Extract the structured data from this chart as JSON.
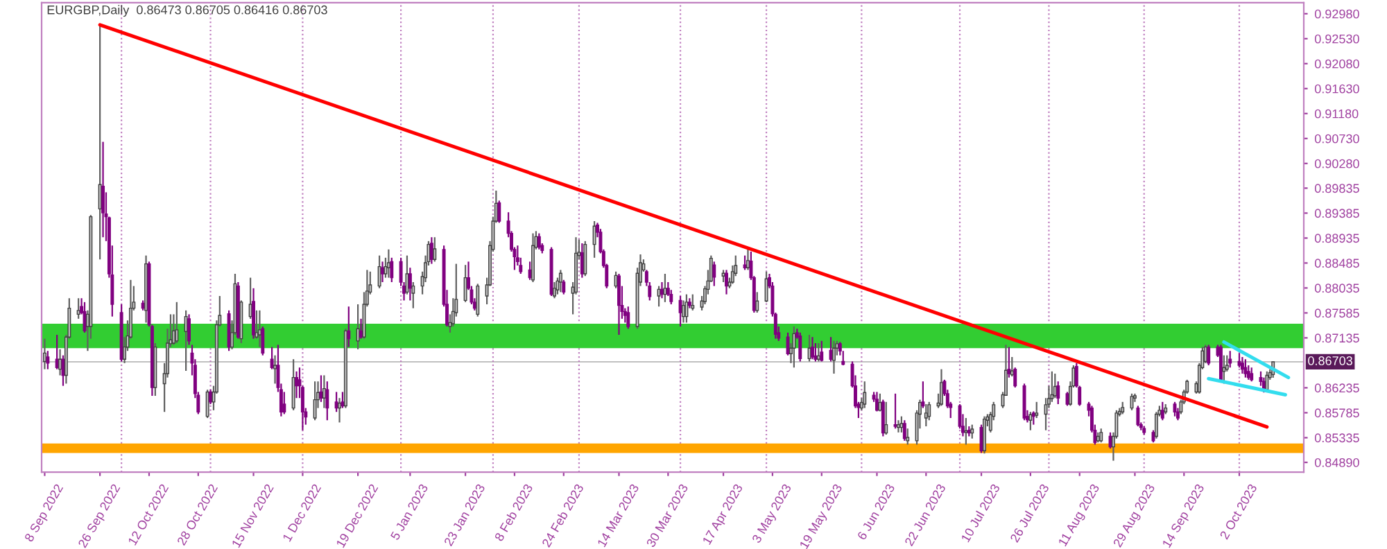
{
  "chart_data": {
    "type": "candlestick",
    "title": "EURGBP,Daily  0.86473 0.86705 0.86416 0.86703",
    "colors": [
      "#c0c0c0",
      "#800080",
      "#800080",
      "#c0c0c0",
      "#800080",
      "#c0c0c0",
      "#c0c0c0",
      "#c0c0c0",
      "#800080",
      "#800080",
      "#c0c0c0",
      "#c0c0c0",
      "#c0c0c0",
      "#800080",
      "#800080",
      "#800080",
      "#800080",
      "#800080",
      "#c0c0c0",
      "#c0c0c0",
      "#c0c0c0",
      "#c0c0c0",
      "#800080",
      "#c0c0c0",
      "#800080",
      "#800080",
      "#c0c0c0",
      "#c0c0c0",
      "#c0c0c0",
      "#c0c0c0",
      "#c0c0c0",
      "#c0c0c0",
      "#c0c0c0",
      "#800080",
      "#800080",
      "#800080",
      "#800080",
      "#c0c0c0",
      "#800080",
      "#c0c0c0",
      "#c0c0c0",
      "#c0c0c0",
      "#800080",
      "#c0c0c0",
      "#c0c0c0",
      "#800080",
      "#c0c0c0",
      "#c0c0c0",
      "#800080",
      "#c0c0c0",
      "#c0c0c0",
      "#800080",
      "#800080",
      "#c0c0c0",
      "#800080",
      "#800080",
      "#800080",
      "#c0c0c0",
      "#800080",
      "#800080",
      "#800080",
      "#800080",
      "#c0c0c0",
      "#c0c0c0",
      "#800080",
      "#c0c0c0",
      "#800080",
      "#800080",
      "#c0c0c0",
      "#800080",
      "#c0c0c0",
      "#800080",
      "#c0c0c0",
      "#800080",
      "#c0c0c0",
      "#c0c0c0",
      "#c0c0c0",
      "#c0c0c0",
      "#800080",
      "#c0c0c0",
      "#c0c0c0",
      "#800080",
      "#800080",
      "#800080",
      "#c0c0c0",
      "#800080",
      "#c0c0c0",
      "#c0c0c0",
      "#c0c0c0",
      "#c0c0c0",
      "#800080",
      "#c0c0c0",
      "#800080",
      "#800080",
      "#c0c0c0",
      "#c0c0c0",
      "#c0c0c0",
      "#c0c0c0",
      "#800080",
      "#800080",
      "#800080",
      "#c0c0c0",
      "#c0c0c0",
      "#c0c0c0",
      "#c0c0c0",
      "#c0c0c0",
      "#800080",
      "#800080",
      "#800080",
      "#800080",
      "#800080",
      "#800080",
      "#800080",
      "#c0c0c0",
      "#c0c0c0",
      "#800080",
      "#800080",
      "#800080",
      "#c0c0c0",
      "#c0c0c0",
      "#c0c0c0",
      "#800080",
      "#c0c0c0",
      "#c0c0c0",
      "#c0c0c0",
      "#800080",
      "#c0c0c0",
      "#c0c0c0",
      "#800080",
      "#800080",
      "#800080",
      "#800080",
      "#c0c0c0",
      "#800080",
      "#800080",
      "#800080",
      "#800080",
      "#c0c0c0",
      "#c0c0c0",
      "#c0c0c0",
      "#800080",
      "#800080",
      "#c0c0c0",
      "#800080",
      "#c0c0c0",
      "#800080",
      "#800080",
      "#800080",
      "#c0c0c0",
      "#c0c0c0",
      "#800080",
      "#c0c0c0",
      "#c0c0c0",
      "#c0c0c0",
      "#c0c0c0",
      "#c0c0c0",
      "#800080",
      "#c0c0c0",
      "#800080",
      "#c0c0c0",
      "#c0c0c0",
      "#c0c0c0",
      "#800080",
      "#c0c0c0",
      "#800080",
      "#800080",
      "#c0c0c0",
      "#c0c0c0",
      "#800080",
      "#800080",
      "#800080",
      "#800080",
      "#800080",
      "#c0c0c0",
      "#c0c0c0",
      "#800080",
      "#800080",
      "#c0c0c0",
      "#800080",
      "#800080",
      "#c0c0c0",
      "#800080",
      "#800080",
      "#c0c0c0",
      "#c0c0c0",
      "#800080",
      "#800080",
      "#800080",
      "#800080",
      "#800080",
      "#c0c0c0",
      "#c0c0c0",
      "#800080",
      "#800080",
      "#c0c0c0",
      "#800080",
      "#c0c0c0",
      "#800080",
      "#c0c0c0",
      "#c0c0c0",
      "#800080",
      "#c0c0c0",
      "#c0c0c0",
      "#c0c0c0",
      "#800080",
      "#c0c0c0",
      "#c0c0c0",
      "#c0c0c0",
      "#c0c0c0",
      "#800080",
      "#800080",
      "#800080",
      "#800080",
      "#800080",
      "#c0c0c0",
      "#800080",
      "#c0c0c0",
      "#800080",
      "#c0c0c0",
      "#c0c0c0",
      "#c0c0c0",
      "#c0c0c0",
      "#c0c0c0",
      "#c0c0c0",
      "#800080",
      "#c0c0c0",
      "#800080",
      "#800080",
      "#800080",
      "#c0c0c0",
      "#800080",
      "#c0c0c0",
      "#c0c0c0",
      "#c0c0c0",
      "#c0c0c0",
      "#c0c0c0",
      "#800080",
      "#800080",
      "#c0c0c0",
      "#c0c0c0",
      "#800080",
      "#800080",
      "#800080",
      "#800080",
      "#800080",
      "#c0c0c0",
      "#c0c0c0",
      "#800080",
      "#c0c0c0",
      "#c0c0c0",
      "#c0c0c0",
      "#c0c0c0",
      "#c0c0c0",
      "#c0c0c0",
      "#800080",
      "#800080",
      "#800080",
      "#800080",
      "#c0c0c0",
      "#c0c0c0",
      "#800080",
      "#c0c0c0",
      "#800080",
      "#800080",
      "#c0c0c0",
      "#c0c0c0",
      "#c0c0c0",
      "#c0c0c0",
      "#c0c0c0",
      "#c0c0c0",
      "#c0c0c0",
      "#800080",
      "#800080",
      "#800080",
      "#c0c0c0",
      "#c0c0c0",
      "#800080",
      "#800080",
      "#800080",
      "#800080",
      "#800080",
      "#800080",
      "#800080",
      "#800080",
      "#c0c0c0",
      "#c0c0c0",
      "#c0c0c0"
    ],
    "x": [
      "2022-09-08",
      "2022-09-09",
      "2022-09-12",
      "2022-09-13",
      "2022-09-14",
      "2022-09-15",
      "2022-09-16",
      "2022-09-19",
      "2022-09-20",
      "2022-09-21",
      "2022-09-22",
      "2022-09-23",
      "2022-09-26",
      "2022-09-27",
      "2022-09-28",
      "2022-09-29",
      "2022-09-30",
      "2022-10-03",
      "2022-10-04",
      "2022-10-05",
      "2022-10-06",
      "2022-10-07",
      "2022-10-10",
      "2022-10-11",
      "2022-10-12",
      "2022-10-13",
      "2022-10-14",
      "2022-10-17",
      "2022-10-18",
      "2022-10-19",
      "2022-10-20",
      "2022-10-21",
      "2022-10-24",
      "2022-10-25",
      "2022-10-26",
      "2022-10-27",
      "2022-10-28",
      "2022-10-31",
      "2022-11-01",
      "2022-11-02",
      "2022-11-03",
      "2022-11-04",
      "2022-11-07",
      "2022-11-08",
      "2022-11-09",
      "2022-11-10",
      "2022-11-11",
      "2022-11-14",
      "2022-11-15",
      "2022-11-16",
      "2022-11-17",
      "2022-11-18",
      "2022-11-21",
      "2022-11-22",
      "2022-11-23",
      "2022-11-24",
      "2022-11-25",
      "2022-11-28",
      "2022-11-29",
      "2022-11-30",
      "2022-12-01",
      "2022-12-02",
      "2022-12-05",
      "2022-12-06",
      "2022-12-07",
      "2022-12-08",
      "2022-12-09",
      "2022-12-12",
      "2022-12-13",
      "2022-12-14",
      "2022-12-15",
      "2022-12-16",
      "2022-12-19",
      "2022-12-20",
      "2022-12-21",
      "2022-12-22",
      "2022-12-23",
      "2022-12-26",
      "2022-12-27",
      "2022-12-28",
      "2022-12-29",
      "2022-12-30",
      "2023-01-02",
      "2023-01-03",
      "2023-01-04",
      "2023-01-05",
      "2023-01-06",
      "2023-01-09",
      "2023-01-10",
      "2023-01-11",
      "2023-01-12",
      "2023-01-13",
      "2023-01-16",
      "2023-01-17",
      "2023-01-18",
      "2023-01-19",
      "2023-01-20",
      "2023-01-23",
      "2023-01-24",
      "2023-01-25",
      "2023-01-26",
      "2023-01-27",
      "2023-01-30",
      "2023-01-31",
      "2023-02-01",
      "2023-02-02",
      "2023-02-03",
      "2023-02-06",
      "2023-02-07",
      "2023-02-08",
      "2023-02-09",
      "2023-02-10",
      "2023-02-13",
      "2023-02-14",
      "2023-02-15",
      "2023-02-16",
      "2023-02-17",
      "2023-02-20",
      "2023-02-21",
      "2023-02-22",
      "2023-02-23",
      "2023-02-24",
      "2023-02-27",
      "2023-02-28",
      "2023-03-01",
      "2023-03-02",
      "2023-03-03",
      "2023-03-06",
      "2023-03-07",
      "2023-03-08",
      "2023-03-09",
      "2023-03-10",
      "2023-03-13",
      "2023-03-14",
      "2023-03-15",
      "2023-03-16",
      "2023-03-17",
      "2023-03-20",
      "2023-03-21",
      "2023-03-22",
      "2023-03-23",
      "2023-03-24",
      "2023-03-27",
      "2023-03-28",
      "2023-03-29",
      "2023-03-30",
      "2023-03-31",
      "2023-04-03",
      "2023-04-04",
      "2023-04-05",
      "2023-04-06",
      "2023-04-07",
      "2023-04-10",
      "2023-04-11",
      "2023-04-12",
      "2023-04-13",
      "2023-04-14",
      "2023-04-17",
      "2023-04-18",
      "2023-04-19",
      "2023-04-20",
      "2023-04-21",
      "2023-04-24",
      "2023-04-25",
      "2023-04-26",
      "2023-04-27",
      "2023-04-28",
      "2023-05-01",
      "2023-05-02",
      "2023-05-03",
      "2023-05-04",
      "2023-05-05",
      "2023-05-08",
      "2023-05-09",
      "2023-05-10",
      "2023-05-11",
      "2023-05-12",
      "2023-05-15",
      "2023-05-16",
      "2023-05-17",
      "2023-05-18",
      "2023-05-19",
      "2023-05-22",
      "2023-05-23",
      "2023-05-24",
      "2023-05-25",
      "2023-05-26",
      "2023-05-29",
      "2023-05-30",
      "2023-05-31",
      "2023-06-01",
      "2023-06-02",
      "2023-06-05",
      "2023-06-06",
      "2023-06-07",
      "2023-06-08",
      "2023-06-09",
      "2023-06-12",
      "2023-06-13",
      "2023-06-14",
      "2023-06-15",
      "2023-06-16",
      "2023-06-19",
      "2023-06-20",
      "2023-06-21",
      "2023-06-22",
      "2023-06-23",
      "2023-06-26",
      "2023-06-27",
      "2023-06-28",
      "2023-06-29",
      "2023-06-30",
      "2023-07-03",
      "2023-07-04",
      "2023-07-05",
      "2023-07-06",
      "2023-07-07",
      "2023-07-10",
      "2023-07-11",
      "2023-07-12",
      "2023-07-13",
      "2023-07-14",
      "2023-07-17",
      "2023-07-18",
      "2023-07-19",
      "2023-07-20",
      "2023-07-21",
      "2023-07-24",
      "2023-07-25",
      "2023-07-26",
      "2023-07-27",
      "2023-07-28",
      "2023-07-31",
      "2023-08-01",
      "2023-08-02",
      "2023-08-03",
      "2023-08-04",
      "2023-08-07",
      "2023-08-08",
      "2023-08-09",
      "2023-08-10",
      "2023-08-11",
      "2023-08-14",
      "2023-08-15",
      "2023-08-16",
      "2023-08-17",
      "2023-08-18",
      "2023-08-21",
      "2023-08-22",
      "2023-08-23",
      "2023-08-24",
      "2023-08-25",
      "2023-08-28",
      "2023-08-29",
      "2023-08-30",
      "2023-08-31",
      "2023-09-01",
      "2023-09-04",
      "2023-09-05",
      "2023-09-06",
      "2023-09-07",
      "2023-09-08",
      "2023-09-11",
      "2023-09-12",
      "2023-09-13",
      "2023-09-14",
      "2023-09-15",
      "2023-09-18",
      "2023-09-19",
      "2023-09-20",
      "2023-09-21",
      "2023-09-22",
      "2023-09-25",
      "2023-09-26",
      "2023-09-27",
      "2023-09-28",
      "2023-09-29",
      "2023-10-02",
      "2023-10-03",
      "2023-10-04",
      "2023-10-05",
      "2023-10-06",
      "2023-10-09",
      "2023-10-10",
      "2023-10-11",
      "2023-10-12",
      "2023-10-13"
    ],
    "ohlc": [
      [
        0.8671,
        0.8712,
        0.8657,
        0.8686
      ],
      [
        0.8679,
        0.869,
        0.8657,
        0.8668
      ],
      [
        0.8675,
        0.8719,
        0.8657,
        0.866
      ],
      [
        0.8657,
        0.8693,
        0.8646,
        0.8675
      ],
      [
        0.8675,
        0.8682,
        0.8627,
        0.8646
      ],
      [
        0.8646,
        0.8719,
        0.8631,
        0.8715
      ],
      [
        0.8715,
        0.8785,
        0.8712,
        0.8767
      ],
      [
        0.8756,
        0.8785,
        0.8748,
        0.8763
      ],
      [
        0.877,
        0.8785,
        0.8756,
        0.8759
      ],
      [
        0.8761,
        0.8778,
        0.8723,
        0.8726
      ],
      [
        0.8734,
        0.8763,
        0.869,
        0.8756
      ],
      [
        0.8734,
        0.8935,
        0.8712,
        0.8932
      ],
      [
        0.8946,
        0.9276,
        0.8855,
        0.899
      ],
      [
        0.8987,
        0.9067,
        0.8895,
        0.8939
      ],
      [
        0.8937,
        0.8976,
        0.8888,
        0.8932
      ],
      [
        0.893,
        0.8932,
        0.8822,
        0.8829
      ],
      [
        0.8827,
        0.888,
        0.8752,
        0.8774
      ],
      [
        0.8759,
        0.8774,
        0.8671,
        0.8675
      ],
      [
        0.8675,
        0.8715,
        0.8668,
        0.8697
      ],
      [
        0.8697,
        0.8745,
        0.869,
        0.8717
      ],
      [
        0.8715,
        0.8818,
        0.8712,
        0.8767
      ],
      [
        0.8767,
        0.8807,
        0.8763,
        0.8778
      ],
      [
        0.8776,
        0.8781,
        0.8763,
        0.8767
      ],
      [
        0.8763,
        0.8862,
        0.8741,
        0.8847
      ],
      [
        0.8847,
        0.8851,
        0.8734,
        0.8737
      ],
      [
        0.8734,
        0.8737,
        0.8609,
        0.8624
      ],
      [
        0.8624,
        0.8704,
        0.8609,
        0.8697
      ],
      [
        0.8631,
        0.8668,
        0.858,
        0.8649
      ],
      [
        0.8649,
        0.873,
        0.8642,
        0.8704
      ],
      [
        0.8703,
        0.8756,
        0.8697,
        0.871
      ],
      [
        0.8704,
        0.8756,
        0.8701,
        0.8726
      ],
      [
        0.8708,
        0.8778,
        0.8704,
        0.8728
      ],
      [
        0.8725,
        0.8763,
        0.8654,
        0.8752
      ],
      [
        0.8748,
        0.8756,
        0.8701,
        0.8708
      ],
      [
        0.8686,
        0.8701,
        0.8646,
        0.8668
      ],
      [
        0.8664,
        0.8675,
        0.8605,
        0.8613
      ],
      [
        0.861,
        0.8616,
        0.8576,
        0.858
      ],
      [
        0.8572,
        0.862,
        0.8569,
        0.8616
      ],
      [
        0.8616,
        0.862,
        0.8594,
        0.8598
      ],
      [
        0.8598,
        0.8627,
        0.8583,
        0.8616
      ],
      [
        0.8616,
        0.8745,
        0.8613,
        0.8737
      ],
      [
        0.8737,
        0.8789,
        0.8734,
        0.8754
      ],
      [
        0.8757,
        0.8763,
        0.869,
        0.8697
      ],
      [
        0.8697,
        0.8745,
        0.8693,
        0.8723
      ],
      [
        0.8723,
        0.8829,
        0.8719,
        0.8811
      ],
      [
        0.8807,
        0.8814,
        0.8712,
        0.8715
      ],
      [
        0.8712,
        0.8781,
        0.8704,
        0.8778
      ],
      [
        0.8752,
        0.8822,
        0.8748,
        0.8774
      ],
      [
        0.8779,
        0.8803,
        0.8712,
        0.8719
      ],
      [
        0.8715,
        0.8763,
        0.8712,
        0.8723
      ],
      [
        0.8719,
        0.8763,
        0.8697,
        0.8728
      ],
      [
        0.873,
        0.8734,
        0.8682,
        0.8686
      ],
      [
        0.8675,
        0.8697,
        0.8657,
        0.866
      ],
      [
        0.8658,
        0.8682,
        0.8631,
        0.8664
      ],
      [
        0.8664,
        0.8701,
        0.8616,
        0.8624
      ],
      [
        0.862,
        0.8631,
        0.8572,
        0.858
      ],
      [
        0.8594,
        0.8616,
        0.8576,
        0.858
      ],
      [
        0.8587,
        0.8675,
        0.8583,
        0.8642
      ],
      [
        0.8642,
        0.8653,
        0.8605,
        0.8627
      ],
      [
        0.8638,
        0.866,
        0.8605,
        0.8627
      ],
      [
        0.8624,
        0.8627,
        0.8547,
        0.858
      ],
      [
        0.858,
        0.8587,
        0.8557,
        0.8571
      ],
      [
        0.8569,
        0.8635,
        0.8565,
        0.8602
      ],
      [
        0.8602,
        0.8635,
        0.8587,
        0.8615
      ],
      [
        0.8616,
        0.8646,
        0.8598,
        0.8605
      ],
      [
        0.8605,
        0.8646,
        0.8587,
        0.8622
      ],
      [
        0.862,
        0.8635,
        0.8565,
        0.8587
      ],
      [
        0.8598,
        0.8616,
        0.858,
        0.8587
      ],
      [
        0.8587,
        0.8605,
        0.8561,
        0.8596
      ],
      [
        0.8598,
        0.8616,
        0.8587,
        0.8591
      ],
      [
        0.8591,
        0.873,
        0.8587,
        0.8726
      ],
      [
        0.8726,
        0.877,
        0.8697,
        0.8712
      ],
      [
        0.8708,
        0.8774,
        0.8693,
        0.873
      ],
      [
        0.8726,
        0.8748,
        0.8712,
        0.8715
      ],
      [
        0.8715,
        0.8796,
        0.8712,
        0.8774
      ],
      [
        0.8774,
        0.8836,
        0.877,
        0.8798
      ],
      [
        0.8796,
        0.8833,
        0.8792,
        0.8809
      ],
      [
        0.8807,
        0.8862,
        0.8803,
        0.8842
      ],
      [
        0.884,
        0.8851,
        0.8814,
        0.8829
      ],
      [
        0.8829,
        0.8858,
        0.8822,
        0.8842
      ],
      [
        0.884,
        0.8873,
        0.8822,
        0.8849
      ],
      [
        0.8851,
        0.8858,
        0.8814,
        0.8822
      ],
      [
        0.8851,
        0.8858,
        0.8807,
        0.8814
      ],
      [
        0.8807,
        0.8814,
        0.8781,
        0.8794
      ],
      [
        0.8796,
        0.8862,
        0.8792,
        0.8829
      ],
      [
        0.8829,
        0.884,
        0.8781,
        0.8803
      ],
      [
        0.8794,
        0.8814,
        0.8767,
        0.8807
      ],
      [
        0.8807,
        0.8833,
        0.8792,
        0.8824
      ],
      [
        0.8822,
        0.8862,
        0.8814,
        0.8849
      ],
      [
        0.8851,
        0.8888,
        0.8844,
        0.8882
      ],
      [
        0.8884,
        0.8895,
        0.8847,
        0.8855
      ],
      [
        0.8855,
        0.8895,
        0.8851,
        0.8874
      ],
      [
        0.8873,
        0.888,
        0.877,
        0.8774
      ],
      [
        0.8774,
        0.88,
        0.8734,
        0.8737
      ],
      [
        0.8734,
        0.8756,
        0.8723,
        0.8741
      ],
      [
        0.8739,
        0.8785,
        0.8734,
        0.8761
      ],
      [
        0.8759,
        0.8847,
        0.8752,
        0.8783
      ],
      [
        0.8781,
        0.8845,
        0.8778,
        0.8822
      ],
      [
        0.8822,
        0.8851,
        0.88,
        0.8803
      ],
      [
        0.88,
        0.8807,
        0.8774,
        0.8778
      ],
      [
        0.8778,
        0.8785,
        0.8763,
        0.8767
      ],
      [
        0.8756,
        0.8811,
        0.8752,
        0.8807
      ],
      [
        0.8789,
        0.8822,
        0.8774,
        0.8809
      ],
      [
        0.8809,
        0.8888,
        0.8807,
        0.888
      ],
      [
        0.8873,
        0.8932,
        0.8869,
        0.8924
      ],
      [
        0.8924,
        0.8979,
        0.8921,
        0.8956
      ],
      [
        0.8957,
        0.8961,
        0.8921,
        0.8924
      ],
      [
        0.8924,
        0.894,
        0.8895,
        0.8902
      ],
      [
        0.8902,
        0.8906,
        0.8869,
        0.8873
      ],
      [
        0.8873,
        0.8877,
        0.8836,
        0.886
      ],
      [
        0.8858,
        0.888,
        0.8844,
        0.8851
      ],
      [
        0.8844,
        0.8858,
        0.8829,
        0.8833
      ],
      [
        0.8836,
        0.8851,
        0.8818,
        0.8822
      ],
      [
        0.8818,
        0.8902,
        0.8814,
        0.888
      ],
      [
        0.8877,
        0.8906,
        0.8873,
        0.8896
      ],
      [
        0.8896,
        0.8902,
        0.8873,
        0.8877
      ],
      [
        0.888,
        0.8884,
        0.8866,
        0.8871
      ],
      [
        0.8873,
        0.8877,
        0.8789,
        0.8792
      ],
      [
        0.8789,
        0.8814,
        0.8785,
        0.8803
      ],
      [
        0.88,
        0.8822,
        0.8792,
        0.8816
      ],
      [
        0.8814,
        0.8836,
        0.8796,
        0.883
      ],
      [
        0.8814,
        0.8818,
        0.8792,
        0.8796
      ],
      [
        0.8794,
        0.8814,
        0.8756,
        0.8805
      ],
      [
        0.8796,
        0.8895,
        0.8792,
        0.8866
      ],
      [
        0.8862,
        0.8891,
        0.8855,
        0.8868
      ],
      [
        0.8867,
        0.8884,
        0.8822,
        0.8829
      ],
      [
        0.8829,
        0.8888,
        0.8825,
        0.8882
      ],
      [
        0.8882,
        0.8924,
        0.8858,
        0.8915
      ],
      [
        0.8917,
        0.8921,
        0.8895,
        0.8904
      ],
      [
        0.8904,
        0.891,
        0.8866,
        0.8869
      ],
      [
        0.8869,
        0.8873,
        0.884,
        0.8844
      ],
      [
        0.8844,
        0.8847,
        0.8803,
        0.8807
      ],
      [
        0.8807,
        0.8833,
        0.8803,
        0.8826
      ],
      [
        0.8825,
        0.8829,
        0.8719,
        0.8772
      ],
      [
        0.8772,
        0.8807,
        0.8748,
        0.8761
      ],
      [
        0.8761,
        0.8767,
        0.8741,
        0.8754
      ],
      [
        0.8759,
        0.877,
        0.873,
        0.8734
      ],
      [
        0.8734,
        0.884,
        0.873,
        0.883
      ],
      [
        0.8814,
        0.8864,
        0.8807,
        0.8849
      ],
      [
        0.8836,
        0.8855,
        0.8833,
        0.8847
      ],
      [
        0.8833,
        0.8836,
        0.8807,
        0.8814
      ],
      [
        0.8807,
        0.8814,
        0.8781,
        0.8788
      ],
      [
        0.8789,
        0.8807,
        0.877,
        0.8801
      ],
      [
        0.8801,
        0.8814,
        0.8785,
        0.8792
      ],
      [
        0.8792,
        0.8829,
        0.8778,
        0.8803
      ],
      [
        0.8803,
        0.8814,
        0.8789,
        0.8792
      ],
      [
        0.8792,
        0.88,
        0.8774,
        0.8779
      ],
      [
        0.8781,
        0.8789,
        0.8734,
        0.8759
      ],
      [
        0.8752,
        0.8781,
        0.8741,
        0.8772
      ],
      [
        0.8752,
        0.8792,
        0.8741,
        0.8778
      ],
      [
        0.8778,
        0.8785,
        0.8767,
        0.8772
      ],
      [
        0.8767,
        0.8792,
        0.8763,
        0.8772
      ],
      [
        0.8769,
        0.8789,
        0.8763,
        0.878
      ],
      [
        0.8779,
        0.8807,
        0.8774,
        0.8802
      ],
      [
        0.8801,
        0.8836,
        0.8792,
        0.8816
      ],
      [
        0.8816,
        0.8862,
        0.8814,
        0.8857
      ],
      [
        0.8845,
        0.8851,
        0.8807,
        0.8823
      ],
      [
        0.8825,
        0.8836,
        0.8814,
        0.883
      ],
      [
        0.883,
        0.8836,
        0.8792,
        0.8807
      ],
      [
        0.8807,
        0.8822,
        0.8803,
        0.8814
      ],
      [
        0.8814,
        0.8844,
        0.8811,
        0.8833
      ],
      [
        0.883,
        0.8862,
        0.8825,
        0.8844
      ],
      [
        0.8845,
        0.8862,
        0.8836,
        0.884
      ],
      [
        0.884,
        0.8873,
        0.8836,
        0.8853
      ],
      [
        0.8852,
        0.8869,
        0.8818,
        0.8822
      ],
      [
        0.8822,
        0.8825,
        0.8759,
        0.8763
      ],
      [
        0.8763,
        0.8796,
        0.8759,
        0.878
      ],
      [
        0.878,
        0.8833,
        0.8778,
        0.882
      ],
      [
        0.8822,
        0.8829,
        0.8803,
        0.8807
      ],
      [
        0.8807,
        0.8814,
        0.8752,
        0.8757
      ],
      [
        0.8756,
        0.8759,
        0.8712,
        0.872
      ],
      [
        0.8723,
        0.8734,
        0.8708,
        0.8713
      ],
      [
        0.8715,
        0.8723,
        0.8682,
        0.8685
      ],
      [
        0.8685,
        0.8704,
        0.8668,
        0.8695
      ],
      [
        0.8695,
        0.8734,
        0.866,
        0.8721
      ],
      [
        0.8723,
        0.873,
        0.8712,
        0.8715
      ],
      [
        0.8717,
        0.8723,
        0.8671,
        0.8676
      ],
      [
        0.8676,
        0.8719,
        0.8671,
        0.8695
      ],
      [
        0.8697,
        0.8715,
        0.8675,
        0.8679
      ],
      [
        0.8681,
        0.8704,
        0.8671,
        0.8675
      ],
      [
        0.8675,
        0.8704,
        0.8671,
        0.8681
      ],
      [
        0.8688,
        0.8708,
        0.8671,
        0.8673
      ],
      [
        0.8691,
        0.8715,
        0.8671,
        0.8675
      ],
      [
        0.8673,
        0.8708,
        0.8649,
        0.8695
      ],
      [
        0.8695,
        0.8708,
        0.8682,
        0.8703
      ],
      [
        0.8703,
        0.8706,
        0.8682,
        0.869
      ],
      [
        0.8671,
        0.869,
        0.8664,
        0.8666
      ],
      [
        0.8666,
        0.8671,
        0.8624,
        0.8627
      ],
      [
        0.8627,
        0.8646,
        0.8587,
        0.8591
      ],
      [
        0.8594,
        0.8598,
        0.8569,
        0.8588
      ],
      [
        0.8587,
        0.8605,
        0.8583,
        0.8597
      ],
      [
        0.8594,
        0.8635,
        0.8587,
        0.8615
      ],
      [
        0.861,
        0.8616,
        0.8598,
        0.8603
      ],
      [
        0.8603,
        0.8616,
        0.8581,
        0.8583
      ],
      [
        0.8583,
        0.8613,
        0.8581,
        0.8597
      ],
      [
        0.8598,
        0.8602,
        0.8536,
        0.8542
      ],
      [
        0.8542,
        0.8598,
        0.8539,
        0.8557
      ],
      [
        0.8557,
        0.8613,
        0.855,
        0.8554
      ],
      [
        0.8552,
        0.8565,
        0.8543,
        0.8557
      ],
      [
        0.8552,
        0.8572,
        0.8543,
        0.8559
      ],
      [
        0.8559,
        0.8565,
        0.8528,
        0.8532
      ],
      [
        0.8528,
        0.855,
        0.8521,
        0.8534
      ],
      [
        0.8528,
        0.8583,
        0.8521,
        0.8578
      ],
      [
        0.8576,
        0.8602,
        0.855,
        0.8597
      ],
      [
        0.8598,
        0.8635,
        0.8587,
        0.8591
      ],
      [
        0.8569,
        0.8594,
        0.8554,
        0.8578
      ],
      [
        0.8572,
        0.8598,
        0.8565,
        0.8593
      ],
      [
        0.8591,
        0.8613,
        0.8587,
        0.8596
      ],
      [
        0.8594,
        0.8657,
        0.8591,
        0.8633
      ],
      [
        0.8635,
        0.8638,
        0.8609,
        0.8613
      ],
      [
        0.8613,
        0.862,
        0.8587,
        0.8591
      ],
      [
        0.8594,
        0.8598,
        0.8569,
        0.8588
      ],
      [
        0.8591,
        0.8594,
        0.855,
        0.8554
      ],
      [
        0.8554,
        0.8576,
        0.8536,
        0.8543
      ],
      [
        0.8543,
        0.8569,
        0.8521,
        0.8546
      ],
      [
        0.8547,
        0.8554,
        0.8536,
        0.8542
      ],
      [
        0.8542,
        0.8557,
        0.8532,
        0.8549
      ],
      [
        0.8552,
        0.8557,
        0.8506,
        0.851
      ],
      [
        0.851,
        0.8572,
        0.8505,
        0.8567
      ],
      [
        0.8565,
        0.8576,
        0.8554,
        0.8571
      ],
      [
        0.8547,
        0.858,
        0.8543,
        0.8575
      ],
      [
        0.8572,
        0.8598,
        0.8565,
        0.8593
      ],
      [
        0.8591,
        0.8616,
        0.8587,
        0.8611
      ],
      [
        0.861,
        0.8701,
        0.8609,
        0.8655
      ],
      [
        0.8657,
        0.8697,
        0.8642,
        0.8649
      ],
      [
        0.8647,
        0.8679,
        0.8644,
        0.8654
      ],
      [
        0.8657,
        0.866,
        0.8624,
        0.8627
      ],
      [
        0.8627,
        0.8631,
        0.8565,
        0.8569
      ],
      [
        0.8572,
        0.8583,
        0.8561,
        0.8566
      ],
      [
        0.8565,
        0.858,
        0.8547,
        0.8575
      ],
      [
        0.8578,
        0.8581,
        0.8557,
        0.8572
      ],
      [
        0.8574,
        0.8598,
        0.8569,
        0.8578
      ],
      [
        0.8576,
        0.8605,
        0.8547,
        0.8593
      ],
      [
        0.8594,
        0.8627,
        0.8587,
        0.8604
      ],
      [
        0.8604,
        0.8653,
        0.8598,
        0.8611
      ],
      [
        0.8609,
        0.8649,
        0.8605,
        0.8626
      ],
      [
        0.8627,
        0.8635,
        0.8594,
        0.8605
      ],
      [
        0.8613,
        0.8616,
        0.8591,
        0.8594
      ],
      [
        0.8594,
        0.8635,
        0.8591,
        0.8626
      ],
      [
        0.8627,
        0.8664,
        0.8624,
        0.8659
      ],
      [
        0.8662,
        0.8668,
        0.8624,
        0.8627
      ],
      [
        0.8624,
        0.8627,
        0.8591,
        0.8594
      ],
      [
        0.8594,
        0.8598,
        0.8572,
        0.8583
      ],
      [
        0.8587,
        0.8591,
        0.8543,
        0.8547
      ],
      [
        0.8547,
        0.8557,
        0.8521,
        0.8525
      ],
      [
        0.8528,
        0.8543,
        0.8525,
        0.8536
      ],
      [
        0.8528,
        0.855,
        0.8525,
        0.8543
      ],
      [
        0.8536,
        0.8543,
        0.8514,
        0.8517
      ],
      [
        0.8517,
        0.8543,
        0.8492,
        0.8536
      ],
      [
        0.8536,
        0.8583,
        0.8532,
        0.8578
      ],
      [
        0.8576,
        0.8587,
        0.8572,
        0.8581
      ],
      [
        0.858,
        0.8598,
        0.8576,
        0.8588
      ],
      [
        0.8587,
        0.8613,
        0.8583,
        0.8608
      ],
      [
        0.8605,
        0.8613,
        0.8598,
        0.8609
      ],
      [
        0.8587,
        0.8591,
        0.8554,
        0.8557
      ],
      [
        0.8557,
        0.8561,
        0.8547,
        0.8552
      ],
      [
        0.855,
        0.8554,
        0.8539,
        0.8543
      ],
      [
        0.8543,
        0.8547,
        0.8525,
        0.8528
      ],
      [
        0.8536,
        0.858,
        0.8532,
        0.8576
      ],
      [
        0.8576,
        0.8591,
        0.8572,
        0.8583
      ],
      [
        0.8583,
        0.8598,
        0.8565,
        0.8569
      ],
      [
        0.858,
        0.8594,
        0.8576,
        0.8587
      ],
      [
        0.8594,
        0.8598,
        0.8572,
        0.858
      ],
      [
        0.858,
        0.8587,
        0.8565,
        0.8569
      ],
      [
        0.858,
        0.8602,
        0.8576,
        0.8598
      ],
      [
        0.8598,
        0.862,
        0.8594,
        0.8616
      ],
      [
        0.8616,
        0.8638,
        0.8613,
        0.8635
      ],
      [
        0.8616,
        0.8635,
        0.8613,
        0.8631
      ],
      [
        0.8616,
        0.8668,
        0.8613,
        0.8664
      ],
      [
        0.866,
        0.8697,
        0.8657,
        0.869
      ],
      [
        0.8671,
        0.8701,
        0.8668,
        0.8697
      ],
      [
        0.8697,
        0.8701,
        0.8664,
        0.8668
      ],
      [
        0.8697,
        0.8701,
        0.8679,
        0.8682
      ],
      [
        0.8697,
        0.8701,
        0.8635,
        0.8638
      ],
      [
        0.8653,
        0.8682,
        0.8631,
        0.866
      ],
      [
        0.8657,
        0.8682,
        0.8653,
        0.8664
      ],
      [
        0.8675,
        0.869,
        0.866,
        0.8668
      ],
      [
        0.8671,
        0.8686,
        0.866,
        0.8664
      ],
      [
        0.8668,
        0.8679,
        0.8649,
        0.8657
      ],
      [
        0.866,
        0.8675,
        0.8642,
        0.8649
      ],
      [
        0.8653,
        0.8664,
        0.8638,
        0.8642
      ],
      [
        0.8649,
        0.866,
        0.8635,
        0.8638
      ],
      [
        0.8642,
        0.8653,
        0.8627,
        0.8635
      ],
      [
        0.8635,
        0.8642,
        0.8615,
        0.862
      ],
      [
        0.862,
        0.8653,
        0.8616,
        0.8646
      ],
      [
        0.8642,
        0.8657,
        0.8638,
        0.8651
      ],
      [
        0.86473,
        0.86705,
        0.86416,
        0.86703
      ]
    ],
    "series": [
      {
        "type": "line",
        "color": "#ff0000",
        "x": [
          "2022-09-26",
          "2023-10-11"
        ],
        "values": [
          0.9278,
          0.8553
        ]
      },
      {
        "type": "line",
        "color": "#33ddee",
        "x": [
          "2023-09-27",
          "2023-10-18"
        ],
        "values": [
          0.8706,
          0.8642
        ]
      },
      {
        "type": "line",
        "color": "#33ddee",
        "x": [
          "2023-09-22",
          "2023-10-17"
        ],
        "values": [
          0.864,
          0.8611
        ]
      }
    ],
    "bands": [
      {
        "axis": "y",
        "from": 0.8695,
        "to": 0.8739,
        "color": "#32cd32"
      },
      {
        "axis": "y",
        "from": 0.8506,
        "to": 0.8523,
        "color": "#ffa500"
      }
    ],
    "ref_lines": [
      {
        "axis": "y",
        "value": 0.86703,
        "label": "0.86703",
        "color": "#c0c0c0",
        "line_style": "solid"
      },
      {
        "axis": "x",
        "value": "2022-10-03",
        "color": "#c080c0",
        "line_style": "dotted"
      },
      {
        "axis": "x",
        "value": "2022-11-01",
        "color": "#c080c0",
        "line_style": "dotted"
      },
      {
        "axis": "x",
        "value": "2022-12-01",
        "color": "#c080c0",
        "line_style": "dotted"
      },
      {
        "axis": "x",
        "value": "2023-01-02",
        "color": "#c080c0",
        "line_style": "dotted"
      },
      {
        "axis": "x",
        "value": "2023-02-01",
        "color": "#c080c0",
        "line_style": "dotted"
      },
      {
        "axis": "x",
        "value": "2023-03-01",
        "color": "#c080c0",
        "line_style": "dotted"
      },
      {
        "axis": "x",
        "value": "2023-04-03",
        "color": "#c080c0",
        "line_style": "dotted"
      },
      {
        "axis": "x",
        "value": "2023-05-01",
        "color": "#c080c0",
        "line_style": "dotted"
      },
      {
        "axis": "x",
        "value": "2023-06-01",
        "color": "#c080c0",
        "line_style": "dotted"
      },
      {
        "axis": "x",
        "value": "2023-07-03",
        "color": "#c080c0",
        "line_style": "dotted"
      },
      {
        "axis": "x",
        "value": "2023-08-01",
        "color": "#c080c0",
        "line_style": "dotted"
      },
      {
        "axis": "x",
        "value": "2023-09-01",
        "color": "#c080c0",
        "line_style": "dotted"
      },
      {
        "axis": "x",
        "value": "2023-10-02",
        "color": "#c080c0",
        "line_style": "dotted"
      }
    ],
    "xlim": [
      "2022-09-07",
      "2023-10-23"
    ],
    "xticks": [
      {
        "value": "2022-09-08",
        "label": "8 Sep 2022"
      },
      {
        "value": "2022-09-26",
        "label": "26 Sep 2022"
      },
      {
        "value": "2022-10-12",
        "label": "12 Oct 2022"
      },
      {
        "value": "2022-10-28",
        "label": "28 Oct 2022"
      },
      {
        "value": "2022-11-15",
        "label": "15 Nov 2022"
      },
      {
        "value": "2022-12-01",
        "label": "1 Dec 2022"
      },
      {
        "value": "2022-12-19",
        "label": "19 Dec 2022"
      },
      {
        "value": "2023-01-05",
        "label": "5 Jan 2023"
      },
      {
        "value": "2023-01-23",
        "label": "23 Jan 2023"
      },
      {
        "value": "2023-02-08",
        "label": "8 Feb 2023"
      },
      {
        "value": "2023-02-24",
        "label": "24 Feb 2023"
      },
      {
        "value": "2023-03-14",
        "label": "14 Mar 2023"
      },
      {
        "value": "2023-03-30",
        "label": "30 Mar 2023"
      },
      {
        "value": "2023-04-17",
        "label": "17 Apr 2023"
      },
      {
        "value": "2023-05-03",
        "label": "3 May 2023"
      },
      {
        "value": "2023-05-19",
        "label": "19 May 2023"
      },
      {
        "value": "2023-06-06",
        "label": "6 Jun 2023"
      },
      {
        "value": "2023-06-22",
        "label": "22 Jun 2023"
      },
      {
        "value": "2023-07-10",
        "label": "10 Jul 2023"
      },
      {
        "value": "2023-07-26",
        "label": "26 Jul 2023"
      },
      {
        "value": "2023-08-11",
        "label": "11 Aug 2023"
      },
      {
        "value": "2023-08-29",
        "label": "29 Aug 2023"
      },
      {
        "value": "2023-09-14",
        "label": "14 Sep 2023"
      },
      {
        "value": "2023-10-02",
        "label": "2 Oct 2023"
      }
    ],
    "ylim": [
      0.84714,
      0.93178
    ],
    "yticks": [
      {
        "value": 0.9298,
        "label": "0.92980"
      },
      {
        "value": 0.9253,
        "label": "0.92530"
      },
      {
        "value": 0.9208,
        "label": "0.92080"
      },
      {
        "value": 0.9163,
        "label": "0.91630"
      },
      {
        "value": 0.9118,
        "label": "0.91180"
      },
      {
        "value": 0.9073,
        "label": "0.90730"
      },
      {
        "value": 0.9028,
        "label": "0.90280"
      },
      0.89835,
      0.89385,
      0.88935,
      0.88485,
      0.88035,
      0.87585,
      0.87135,
      0.86235,
      0.85785,
      0.85335,
      {
        "value": 0.8489,
        "label": "0.84890"
      }
    ]
  }
}
